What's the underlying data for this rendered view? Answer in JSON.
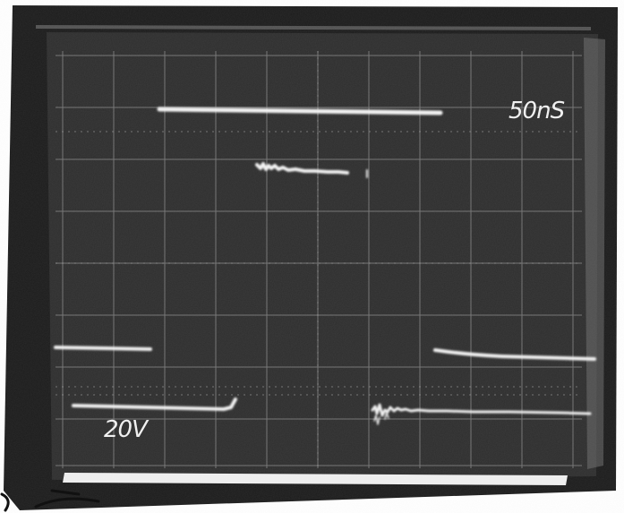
{
  "screen": {
    "timebase_label": "50nS",
    "volts_label": "20V"
  },
  "colors": {
    "paper": "#ffffff",
    "bezel": "#1c1c1c",
    "screen": "#2b2b2b",
    "graticule": "#8a8a8a",
    "trace": "#f4f4f4"
  }
}
